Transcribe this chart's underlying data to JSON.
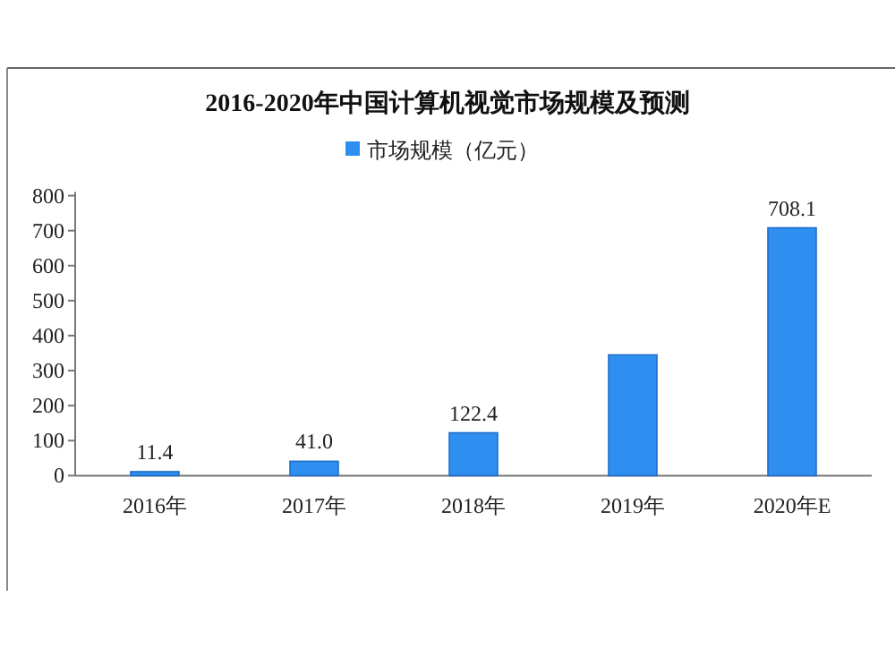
{
  "chart_data": {
    "type": "bar",
    "title": "2016-2020年中国计算机视觉市场规模及预测",
    "categories": [
      "2016年",
      "2017年",
      "2018年",
      "2019年",
      "2020年E"
    ],
    "series": [
      {
        "name": "市场规模（亿元）",
        "color": "#2f8ff0",
        "values": [
          11.4,
          41.0,
          122.4,
          345,
          708.1
        ],
        "value_labels": [
          "11.4",
          "41.0",
          "122.4",
          null,
          "708.1"
        ]
      }
    ],
    "ylim": [
      0,
      800
    ],
    "yticks": [
      0,
      100,
      200,
      300,
      400,
      500,
      600,
      700,
      800
    ],
    "legend": "top"
  }
}
